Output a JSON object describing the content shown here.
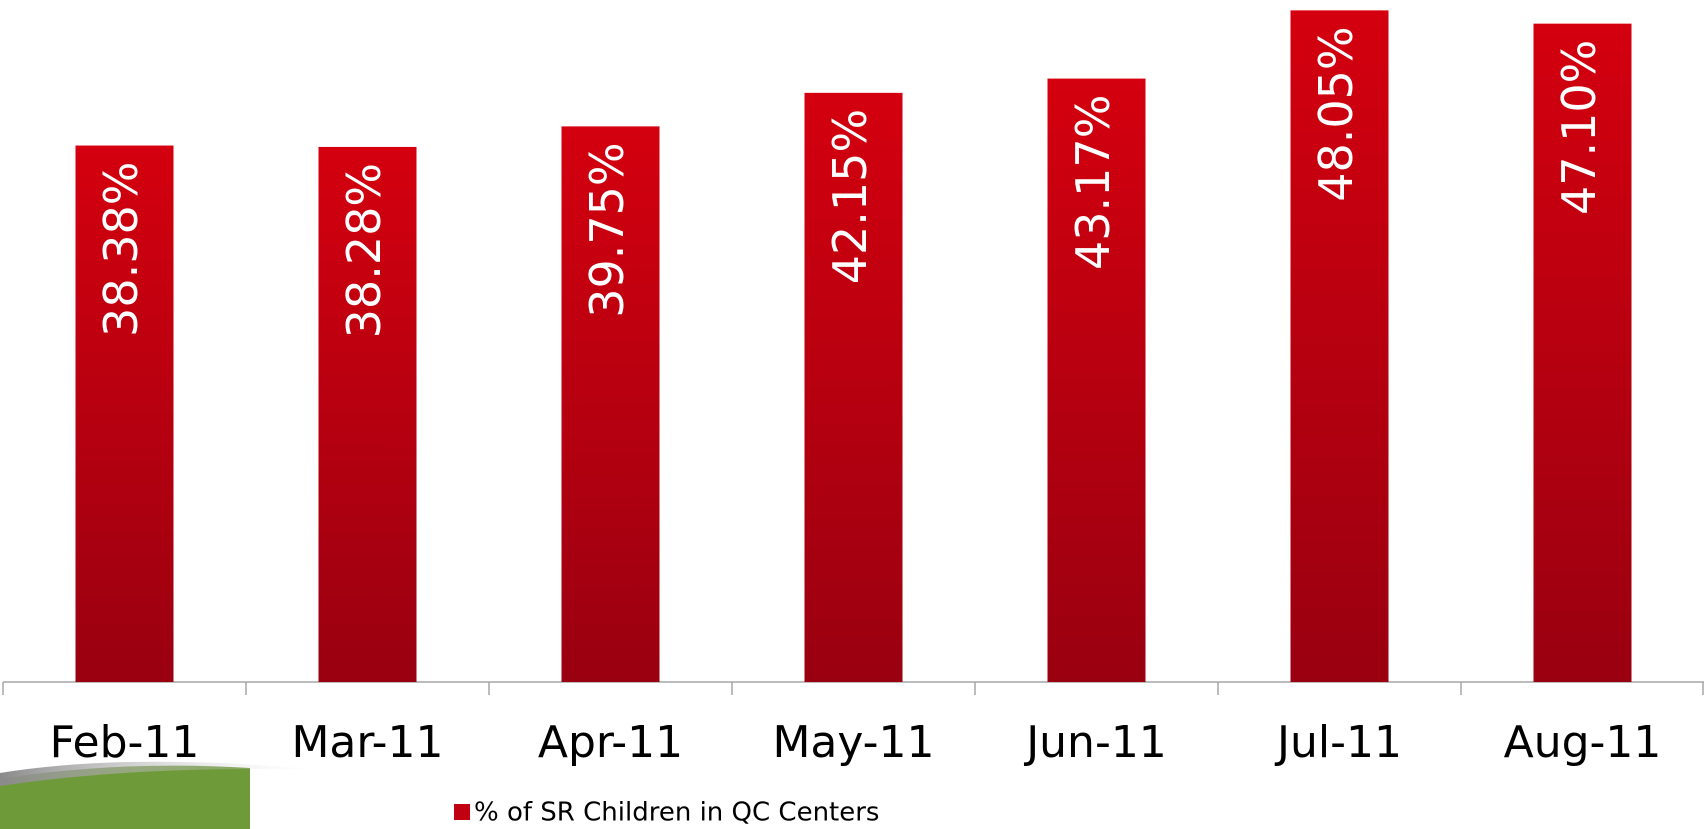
{
  "chart_data": {
    "type": "bar",
    "categories": [
      "Feb-11",
      "Mar-11",
      "Apr-11",
      "May-11",
      "Jun-11",
      "Jul-11",
      "Aug-11"
    ],
    "series": [
      {
        "name": "% of SR Children in QC Centers",
        "color": "#c00010",
        "values": [
          38.38,
          38.28,
          39.75,
          42.15,
          43.17,
          48.05,
          47.1
        ],
        "value_labels": [
          "38.38%",
          "38.28%",
          "39.75%",
          "42.15%",
          "43.17%",
          "48.05%",
          "47.10%"
        ]
      }
    ],
    "legend": "bottom"
  }
}
